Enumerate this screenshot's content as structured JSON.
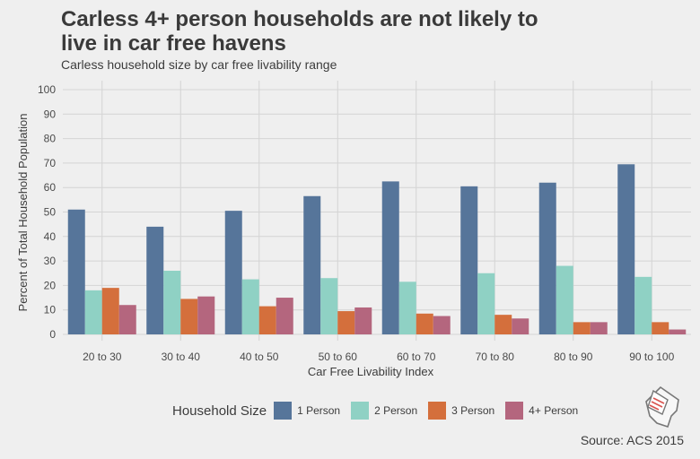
{
  "title": "Carless 4+ person households are not likely to live in car free havens",
  "subtitle": "Carless household size by car free livability range",
  "source": "Source: ACS 2015",
  "legend_title": "Household Size",
  "colors": {
    "background": "#efefef",
    "grid": "#d4d4d4",
    "1 Person": "#56759a",
    "2 Person": "#8fd1c4",
    "3 Person": "#d46f3c",
    "4+ Person": "#b4667e"
  },
  "logo_icon": "dc-map-document-icon",
  "chart_data": {
    "type": "bar",
    "title": "Carless 4+ person households are not likely to live in car free havens",
    "subtitle": "Carless household size by car free livability range",
    "xlabel": "Car Free Livability Index",
    "ylabel": "Percent of Total Household Population",
    "ylim": [
      0,
      100
    ],
    "yticks": [
      0,
      10,
      20,
      30,
      40,
      50,
      60,
      70,
      80,
      90,
      100
    ],
    "grid": true,
    "legend_position": "bottom",
    "categories": [
      "20 to 30",
      "30 to 40",
      "40 to 50",
      "50 to 60",
      "60 to 70",
      "70 to 80",
      "80 to 90",
      "90 to 100"
    ],
    "series": [
      {
        "name": "1 Person",
        "values": [
          51,
          44,
          50.5,
          56.5,
          62.5,
          60.5,
          62,
          69.5
        ]
      },
      {
        "name": "2 Person",
        "values": [
          18,
          26,
          22.5,
          23,
          21.5,
          25,
          28,
          23.5
        ]
      },
      {
        "name": "3 Person",
        "values": [
          19,
          14.5,
          11.5,
          9.5,
          8.5,
          8,
          5,
          5
        ]
      },
      {
        "name": "4+ Person",
        "values": [
          12,
          15.5,
          15,
          11,
          7.5,
          6.5,
          5,
          2
        ]
      }
    ]
  }
}
